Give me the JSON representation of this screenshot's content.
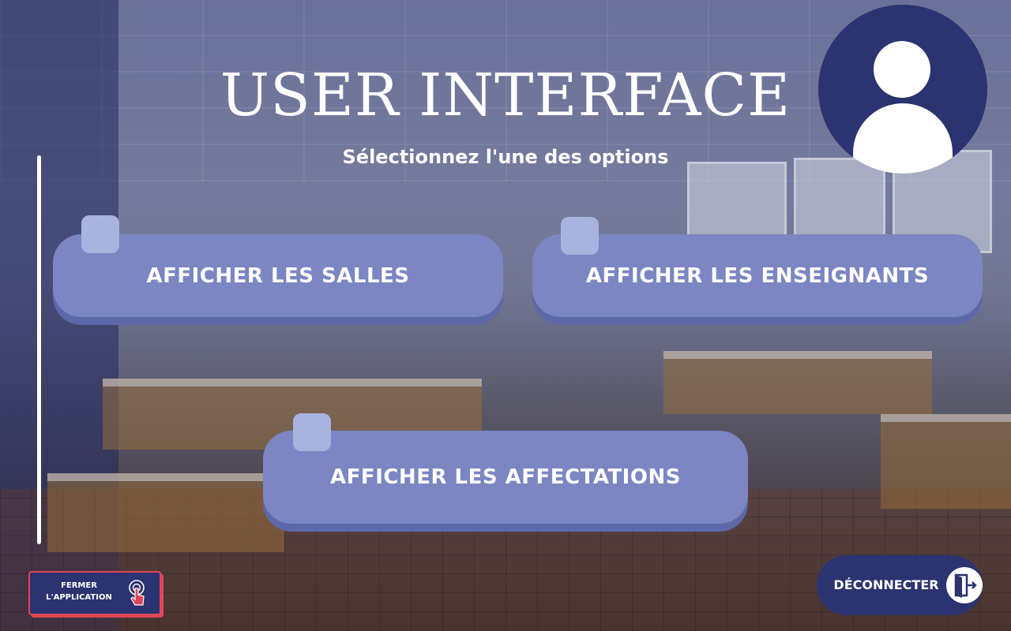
{
  "header": {
    "title": "USER INTERFACE",
    "subtitle": "Sélectionnez l'une des options"
  },
  "menu": {
    "rooms_label": "AFFICHER LES SALLES",
    "teachers_label": "AFFICHER LES ENSEIGNANTS",
    "assignments_label": "AFFICHER LES AFFECTATIONS"
  },
  "footer": {
    "close_label_line1": "FERMER",
    "close_label_line2": "L'APPLICATION",
    "logout_label": "DÉCONNECTER"
  },
  "icons": {
    "avatar": "user-icon",
    "close": "hand-click-icon",
    "logout": "door-exit-icon"
  },
  "colors": {
    "navy": "#2b3370",
    "button": "#7b86c2",
    "button_shadow": "#5d68a8",
    "accent_red": "#e0465a"
  }
}
